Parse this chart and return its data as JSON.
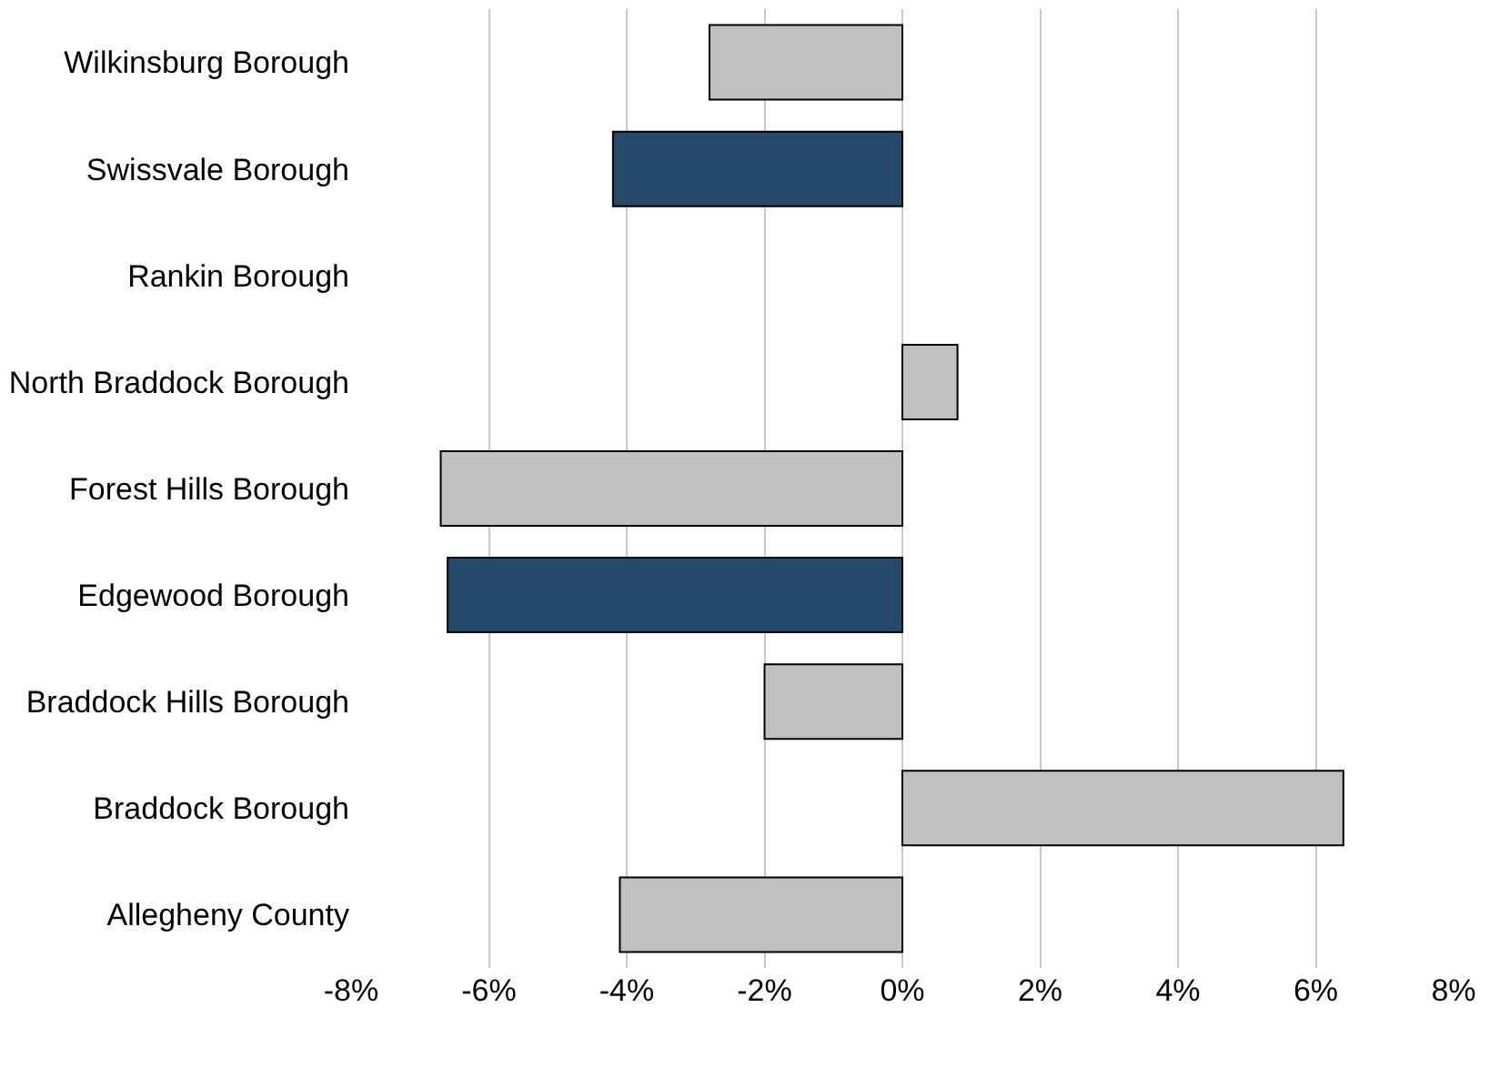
{
  "chart_data": {
    "type": "bar",
    "orientation": "horizontal",
    "categories": [
      "Wilkinsburg Borough",
      "Swissvale Borough",
      "Rankin Borough",
      "North Braddock Borough",
      "Forest Hills Borough",
      "Edgewood Borough",
      "Braddock Hills Borough",
      "Braddock Borough",
      "Allegheny County"
    ],
    "values": [
      -2.8,
      -4.2,
      null,
      0.8,
      -6.7,
      -6.6,
      -2.0,
      6.4,
      -4.1
    ],
    "colors": [
      "#c0c0c0",
      "#254a6b",
      "#c0c0c0",
      "#c0c0c0",
      "#c0c0c0",
      "#254a6b",
      "#c0c0c0",
      "#c0c0c0",
      "#c0c0c0"
    ],
    "xlim": [
      -8,
      8
    ],
    "xticks": [
      {
        "value": -8,
        "label": "-8%"
      },
      {
        "value": -6,
        "label": "-6%"
      },
      {
        "value": -4,
        "label": "-4%"
      },
      {
        "value": -2,
        "label": "-2%"
      },
      {
        "value": 0,
        "label": "0%"
      },
      {
        "value": 2,
        "label": "2%"
      },
      {
        "value": 4,
        "label": "4%"
      },
      {
        "value": 6,
        "label": "6%"
      },
      {
        "value": 8,
        "label": "8%"
      }
    ],
    "grid": "x"
  }
}
